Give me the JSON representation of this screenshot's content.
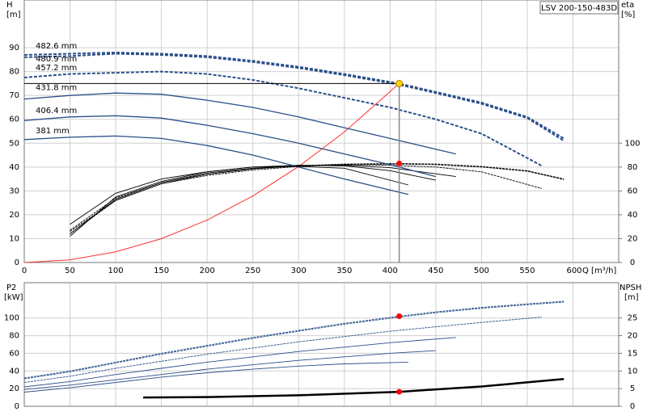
{
  "chart_data": [
    {
      "type": "line",
      "title": "LSV 200-150-483D",
      "ylabel": "H",
      "yunit": "[m]",
      "y2label": "eta",
      "y2unit": "[%]",
      "xlabel": "Q [m³/h]",
      "xlim": [
        0,
        650
      ],
      "xticks": [
        0,
        50,
        100,
        150,
        200,
        250,
        300,
        350,
        400,
        450,
        500,
        550,
        600
      ],
      "ylim": [
        0,
        110
      ],
      "yticks": [
        0,
        10,
        20,
        30,
        40,
        50,
        60,
        70,
        80,
        90
      ],
      "y2lim": [
        0,
        220
      ],
      "y2ticks": [
        0,
        20,
        40,
        60,
        80,
        100
      ],
      "grid": true,
      "eta_color": "#000000",
      "series": [
        {
          "name": "482.6 mm",
          "style": "dashed",
          "color": "#2a4f8a",
          "x": [
            0,
            50,
            100,
            150,
            200,
            250,
            300,
            350,
            410,
            450,
            500,
            550,
            590
          ],
          "head": [
            87,
            87.5,
            88,
            87.5,
            86.5,
            84.5,
            82,
            79,
            75,
            71.5,
            67,
            61,
            52
          ],
          "eta": [
            null,
            27,
            54,
            67,
            74,
            78.5,
            81,
            82.5,
            83,
            82.5,
            80.5,
            77,
            70
          ],
          "p2": [
            32,
            40,
            50,
            60,
            69,
            78,
            86,
            94,
            102,
            107,
            112,
            116,
            119
          ]
        },
        {
          "name": "480.9 mm",
          "style": "dashed",
          "color": "#2a4f8a",
          "x": [
            0,
            50,
            100,
            150,
            200,
            250,
            300,
            350,
            410,
            450,
            500,
            550,
            590
          ],
          "head": [
            86,
            86.5,
            87.5,
            87,
            86,
            84,
            81.5,
            78.5,
            74.5,
            71,
            66.5,
            60.5,
            51
          ],
          "eta": [
            null,
            26,
            52,
            66,
            73,
            77.5,
            80.5,
            82,
            82.5,
            82,
            80,
            76.5,
            69.5
          ],
          "p2": [
            31,
            39,
            49,
            59,
            68,
            77,
            85,
            93,
            101,
            106,
            111,
            115,
            118
          ]
        },
        {
          "name": "457.2 mm",
          "style": "dashed",
          "color": "#2a4f8a",
          "x": [
            0,
            50,
            100,
            150,
            200,
            250,
            300,
            350,
            400,
            450,
            500,
            566
          ],
          "head": [
            77.5,
            79,
            79.5,
            80,
            79,
            76.5,
            73,
            69,
            65,
            60,
            54,
            40.5
          ],
          "eta": [
            null,
            24,
            52,
            66,
            74,
            78.5,
            81,
            82,
            81.5,
            80,
            76,
            62
          ],
          "p2": [
            27,
            34,
            43,
            51,
            59,
            66,
            73,
            79,
            85,
            90,
            95,
            101
          ]
        },
        {
          "name": "431.8 mm",
          "style": "solid",
          "color": "#2a4f8a",
          "x": [
            0,
            50,
            100,
            150,
            200,
            250,
            300,
            350,
            400,
            472
          ],
          "head": [
            68.5,
            70,
            71,
            70.5,
            68,
            65,
            61,
            56.5,
            52,
            45.5
          ],
          "eta": [
            null,
            24,
            53,
            67,
            75,
            79,
            81,
            81.5,
            79.5,
            72
          ],
          "p2": [
            22,
            28,
            36,
            43,
            50,
            56,
            62,
            67,
            72,
            78
          ]
        },
        {
          "name": "406.4 mm",
          "style": "solid",
          "color": "#2a4f8a",
          "x": [
            0,
            50,
            100,
            150,
            200,
            250,
            300,
            350,
            400,
            450
          ],
          "head": [
            59.5,
            61,
            61.5,
            60.5,
            57.5,
            54,
            50,
            45.5,
            41,
            36
          ],
          "eta": [
            null,
            22,
            55,
            68,
            76,
            80,
            81.5,
            81,
            77,
            69
          ],
          "p2": [
            19,
            24,
            30,
            36,
            42,
            47,
            52,
            56,
            60,
            63
          ]
        },
        {
          "name": "381 mm",
          "style": "solid",
          "color": "#2a4f8a",
          "x": [
            0,
            50,
            100,
            150,
            200,
            250,
            300,
            350,
            420
          ],
          "head": [
            51.5,
            52.5,
            53,
            52,
            49,
            45,
            40,
            35,
            28.5
          ],
          "eta": [
            null,
            32,
            58,
            70,
            76,
            80,
            80.5,
            79,
            65
          ],
          "p2": [
            16,
            21,
            27,
            33,
            38,
            42,
            45.5,
            48,
            50
          ]
        }
      ],
      "system_curve": {
        "color": "#ff3030",
        "x": [
          0,
          50,
          100,
          150,
          200,
          250,
          300,
          350,
          410
        ],
        "values": [
          0,
          1.1,
          4.5,
          10,
          17.8,
          27.9,
          40.2,
          54.7,
          75
        ]
      },
      "operating_point": {
        "q": 410,
        "h": 75,
        "eta": 83,
        "p2": 102,
        "npsh": 4.1
      }
    },
    {
      "type": "line",
      "ylabel": "P2",
      "yunit": "[kW]",
      "y2label": "NPSH",
      "y2unit": "[m]",
      "xlim": [
        0,
        650
      ],
      "xticks": [
        0,
        50,
        100,
        150,
        200,
        250,
        300,
        350,
        400,
        450,
        500,
        550,
        600
      ],
      "xtick_labels": false,
      "ylim": [
        0,
        140
      ],
      "yticks": [
        0,
        20,
        40,
        60,
        80,
        100
      ],
      "y2lim": [
        0,
        35
      ],
      "y2ticks": [
        0,
        5,
        10,
        15,
        20,
        25
      ],
      "grid": true,
      "npsh": {
        "color": "#000000",
        "x": [
          130,
          200,
          300,
          410,
          500,
          590
        ],
        "values": [
          2.5,
          2.6,
          3.1,
          4.1,
          5.6,
          7.7
        ]
      }
    }
  ]
}
